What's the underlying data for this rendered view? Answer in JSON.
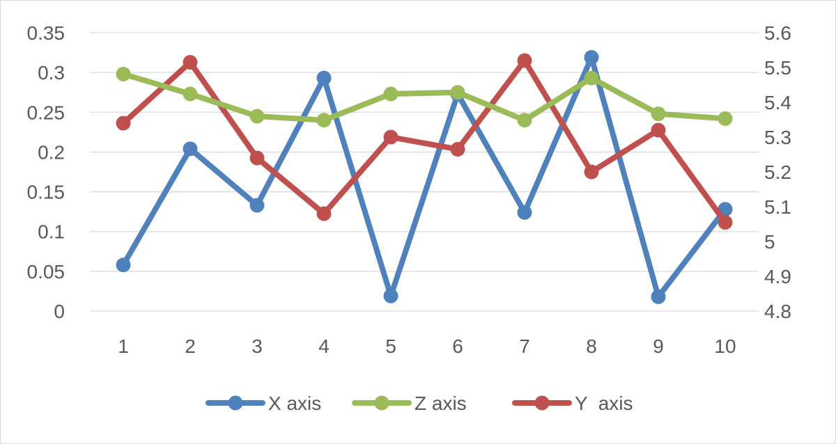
{
  "chart_data": {
    "type": "line",
    "categories": [
      "1",
      "2",
      "3",
      "4",
      "5",
      "6",
      "7",
      "8",
      "9",
      "10"
    ],
    "series": [
      {
        "name": "X axis",
        "axis": "left",
        "color": "#4f81bd",
        "values": [
          0.058,
          0.204,
          0.133,
          0.293,
          0.019,
          0.273,
          0.124,
          0.319,
          0.018,
          0.128
        ]
      },
      {
        "name": "Z axis",
        "axis": "left",
        "color": "#9bbb59",
        "values": [
          0.298,
          0.273,
          0.245,
          0.24,
          0.273,
          0.275,
          0.24,
          0.293,
          0.248,
          0.242
        ]
      },
      {
        "name": "Y  axis",
        "axis": "right",
        "color": "#c0504d",
        "values": [
          5.34,
          5.515,
          5.24,
          5.08,
          5.3,
          5.265,
          5.52,
          5.2,
          5.32,
          5.055
        ]
      }
    ],
    "y_left": {
      "ylim": [
        0,
        0.35
      ],
      "ticks": [
        "0",
        "0.05",
        "0.1",
        "0.15",
        "0.2",
        "0.25",
        "0.3",
        "0.35"
      ]
    },
    "y_right": {
      "ylim": [
        4.8,
        5.6
      ],
      "ticks": [
        "4.8",
        "4.9",
        "5",
        "5.1",
        "5.2",
        "5.3",
        "5.4",
        "5.5",
        "5.6"
      ]
    },
    "grid": true,
    "legend_position": "bottom",
    "gridline_color": "#d9d9d9"
  }
}
